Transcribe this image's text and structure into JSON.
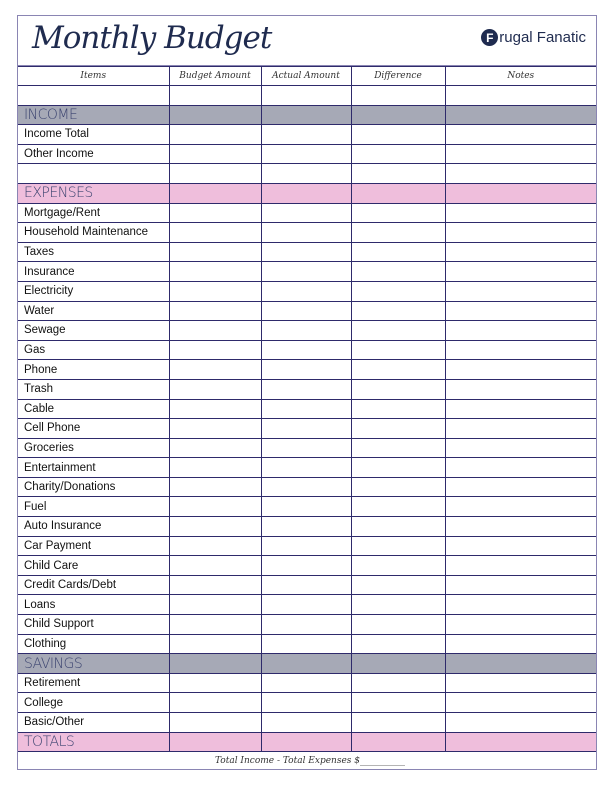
{
  "title": "Monthly Budget",
  "brand": {
    "initial": "F",
    "name": "rugal Fanatic"
  },
  "columns": [
    "Items",
    "Budget Amount",
    "Actual Amount",
    "Difference",
    "Notes"
  ],
  "colors": {
    "section_gray": "#a6a9b6",
    "section_pink": "#efbedc",
    "lines": "#2e2a6b"
  },
  "rows": [
    {
      "type": "blank",
      "label": ""
    },
    {
      "type": "section",
      "style": "gray",
      "label": "INCOME"
    },
    {
      "type": "item",
      "label": "Income Total"
    },
    {
      "type": "item",
      "label": "Other Income"
    },
    {
      "type": "blank",
      "label": ""
    },
    {
      "type": "section",
      "style": "pink",
      "label": "EXPENSES"
    },
    {
      "type": "item",
      "label": "Mortgage/Rent"
    },
    {
      "type": "item",
      "label": "Household Maintenance"
    },
    {
      "type": "item",
      "label": "Taxes"
    },
    {
      "type": "item",
      "label": "Insurance"
    },
    {
      "type": "item",
      "label": "Electricity"
    },
    {
      "type": "item",
      "label": "Water"
    },
    {
      "type": "item",
      "label": "Sewage"
    },
    {
      "type": "item",
      "label": "Gas"
    },
    {
      "type": "item",
      "label": "Phone"
    },
    {
      "type": "item",
      "label": "Trash"
    },
    {
      "type": "item",
      "label": "Cable"
    },
    {
      "type": "item",
      "label": "Cell Phone"
    },
    {
      "type": "item",
      "label": "Groceries"
    },
    {
      "type": "item",
      "label": "Entertainment"
    },
    {
      "type": "item",
      "label": "Charity/Donations"
    },
    {
      "type": "item",
      "label": "Fuel"
    },
    {
      "type": "item",
      "label": "Auto Insurance"
    },
    {
      "type": "item",
      "label": "Car Payment"
    },
    {
      "type": "item",
      "label": "Child Care"
    },
    {
      "type": "item",
      "label": "Credit Cards/Debt"
    },
    {
      "type": "item",
      "label": "Loans"
    },
    {
      "type": "item",
      "label": "Child Support"
    },
    {
      "type": "item",
      "label": "Clothing"
    },
    {
      "type": "section",
      "style": "gray",
      "label": "SAVINGS"
    },
    {
      "type": "item",
      "label": "Retirement"
    },
    {
      "type": "item",
      "label": "College"
    },
    {
      "type": "item",
      "label": "Basic/Other"
    },
    {
      "type": "section",
      "style": "pink",
      "label": "TOTALS"
    }
  ],
  "footer": "Total Income  -  Total Expenses   $__________"
}
